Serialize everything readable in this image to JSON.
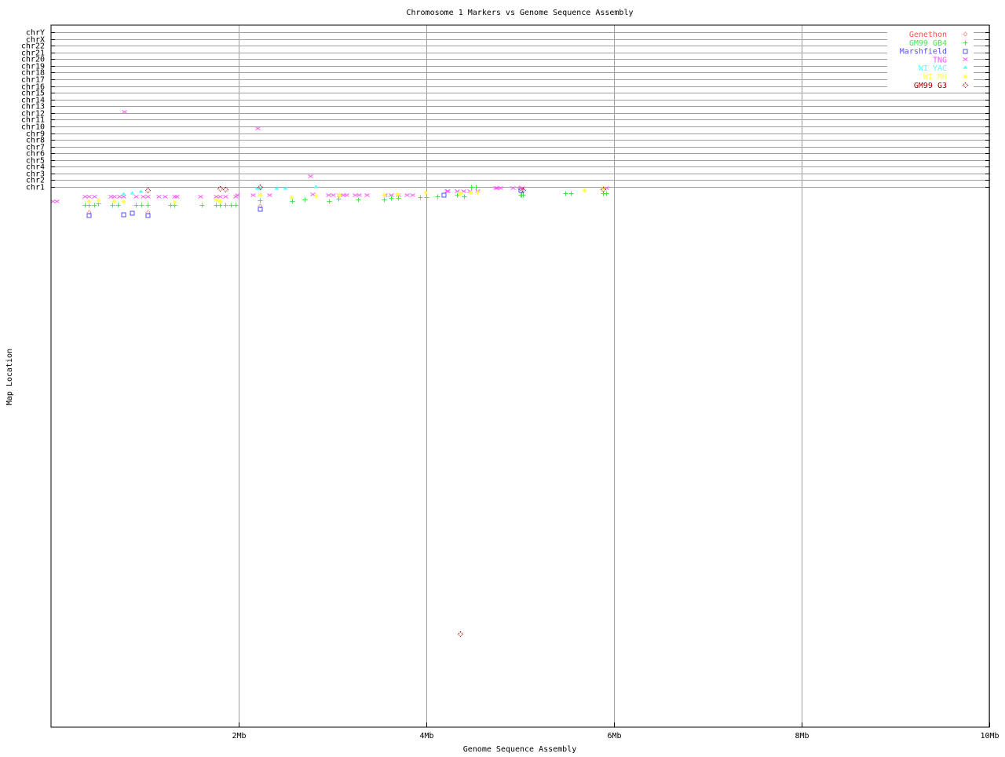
{
  "chart_data": {
    "type": "scatter",
    "title": "Chromosome 1 Markers vs Genome Sequence Assembly",
    "xlabel": "Genome Sequence Assembly",
    "ylabel": "Map Location",
    "xlim": [
      0,
      10
    ],
    "ylim": [
      -79.3,
      25.05
    ],
    "grid": true,
    "legend_position": "top-right",
    "x_ticks": [
      {
        "value": 2,
        "label": "2Mb"
      },
      {
        "value": 4,
        "label": "4Mb"
      },
      {
        "value": 6,
        "label": "6Mb"
      },
      {
        "value": 8,
        "label": "8Mb"
      },
      {
        "value": 10,
        "label": "10Mb"
      }
    ],
    "y_ticks": [
      {
        "value": 1,
        "label": "chr1"
      },
      {
        "value": 2,
        "label": "chr2"
      },
      {
        "value": 3,
        "label": "chr3"
      },
      {
        "value": 4,
        "label": "chr4"
      },
      {
        "value": 5,
        "label": "chr5"
      },
      {
        "value": 6,
        "label": "chr6"
      },
      {
        "value": 7,
        "label": "chr7"
      },
      {
        "value": 8,
        "label": "chr8"
      },
      {
        "value": 9,
        "label": "chr9"
      },
      {
        "value": 10,
        "label": "chr10"
      },
      {
        "value": 11,
        "label": "chr11"
      },
      {
        "value": 12,
        "label": "chr12"
      },
      {
        "value": 13,
        "label": "chr13"
      },
      {
        "value": 14,
        "label": "chr14"
      },
      {
        "value": 15,
        "label": "chr15"
      },
      {
        "value": 16,
        "label": "chr16"
      },
      {
        "value": 17,
        "label": "chr17"
      },
      {
        "value": 18,
        "label": "chr18"
      },
      {
        "value": 19,
        "label": "chr19"
      },
      {
        "value": 20,
        "label": "chr20"
      },
      {
        "value": 21,
        "label": "chr21"
      },
      {
        "value": 22,
        "label": "chr22"
      },
      {
        "value": 23,
        "label": "chrX"
      },
      {
        "value": 24,
        "label": "chrY"
      }
    ],
    "series": [
      {
        "name": "Genethon",
        "color": "#ff5050",
        "marker": "diamond-small",
        "points": [
          [
            0.4,
            -2.74
          ],
          [
            1.03,
            -2.74
          ],
          [
            2.23,
            -1.8
          ],
          [
            4.99,
            0.88
          ]
        ]
      },
      {
        "name": "GM99 GB4",
        "color": "#50e050",
        "marker": "plus",
        "points": [
          [
            0.36,
            -1.69
          ],
          [
            0.4,
            -1.69
          ],
          [
            0.46,
            -1.69
          ],
          [
            0.5,
            -1.45
          ],
          [
            0.65,
            -1.69
          ],
          [
            0.71,
            -1.69
          ],
          [
            0.9,
            -1.69
          ],
          [
            0.96,
            -1.69
          ],
          [
            1.03,
            -1.69
          ],
          [
            1.27,
            -1.69
          ],
          [
            1.31,
            -1.69
          ],
          [
            1.61,
            -1.69
          ],
          [
            1.76,
            -1.69
          ],
          [
            1.8,
            -1.69
          ],
          [
            1.86,
            -1.69
          ],
          [
            1.92,
            -1.69
          ],
          [
            1.97,
            -1.69
          ],
          [
            2.23,
            -0.98
          ],
          [
            2.57,
            -1.1
          ],
          [
            2.7,
            -0.87
          ],
          [
            2.96,
            -1.1
          ],
          [
            3.06,
            -0.75
          ],
          [
            3.27,
            -0.87
          ],
          [
            3.55,
            -0.87
          ],
          [
            3.62,
            -0.63
          ],
          [
            3.7,
            -0.63
          ],
          [
            3.93,
            -0.52
          ],
          [
            4.0,
            -0.52
          ],
          [
            4.12,
            -0.4
          ],
          [
            4.33,
            -0.17
          ],
          [
            4.4,
            -0.4
          ],
          [
            4.48,
            1.0
          ],
          [
            4.53,
            1.0
          ],
          [
            5.0,
            -0.17
          ],
          [
            5.01,
            -0.17
          ],
          [
            5.03,
            -0.17
          ],
          [
            5.48,
            0.07
          ],
          [
            5.54,
            0.07
          ],
          [
            5.88,
            0.07
          ],
          [
            5.92,
            0.07
          ]
        ]
      },
      {
        "name": "Marshfield",
        "color": "#5050ff",
        "marker": "square",
        "points": [
          [
            0.4,
            -3.2
          ],
          [
            0.77,
            -3.09
          ],
          [
            0.86,
            -2.85
          ],
          [
            1.03,
            -3.2
          ],
          [
            2.23,
            -2.27
          ],
          [
            4.18,
            -0.17
          ],
          [
            5.0,
            0.53
          ]
        ]
      },
      {
        "name": "TNG",
        "color": "#ff50ff",
        "marker": "x",
        "points": [
          [
            0.02,
            -1.1
          ],
          [
            0.06,
            -1.1
          ],
          [
            0.36,
            -0.4
          ],
          [
            0.4,
            -0.4
          ],
          [
            0.46,
            -0.4
          ],
          [
            0.64,
            -0.4
          ],
          [
            0.67,
            -0.4
          ],
          [
            0.73,
            -0.4
          ],
          [
            0.77,
            -0.4
          ],
          [
            0.9,
            -0.4
          ],
          [
            0.98,
            -0.4
          ],
          [
            1.03,
            -0.4
          ],
          [
            1.15,
            -0.4
          ],
          [
            1.21,
            -0.4
          ],
          [
            1.31,
            -0.4
          ],
          [
            1.34,
            -0.4
          ],
          [
            1.59,
            -0.4
          ],
          [
            1.76,
            -0.4
          ],
          [
            1.8,
            -0.4
          ],
          [
            1.86,
            -0.4
          ],
          [
            1.97,
            -0.4
          ],
          [
            1.98,
            -0.17
          ],
          [
            2.15,
            -0.17
          ],
          [
            2.33,
            -0.17
          ],
          [
            2.79,
            -0.05
          ],
          [
            2.95,
            -0.17
          ],
          [
            3.0,
            -0.17
          ],
          [
            3.07,
            -0.17
          ],
          [
            3.11,
            -0.17
          ],
          [
            3.15,
            -0.17
          ],
          [
            3.24,
            -0.17
          ],
          [
            3.28,
            -0.17
          ],
          [
            3.36,
            -0.17
          ],
          [
            3.56,
            -0.17
          ],
          [
            3.62,
            -0.17
          ],
          [
            3.7,
            -0.17
          ],
          [
            3.79,
            -0.17
          ],
          [
            3.85,
            -0.17
          ],
          [
            4.22,
            0.42
          ],
          [
            4.23,
            0.42
          ],
          [
            4.33,
            0.42
          ],
          [
            4.39,
            0.42
          ],
          [
            4.46,
            0.42
          ],
          [
            4.54,
            0.42
          ],
          [
            4.74,
            0.88
          ],
          [
            4.75,
            0.88
          ],
          [
            4.79,
            0.88
          ],
          [
            4.92,
            0.88
          ],
          [
            5.02,
            0.88
          ],
          [
            5.92,
            0.88
          ],
          [
            0.78,
            12.21
          ],
          [
            2.2,
            9.76
          ],
          [
            2.76,
            2.63
          ]
        ]
      },
      {
        "name": "WI YAC",
        "color": "#50ffff",
        "marker": "triangle",
        "points": [
          [
            0.77,
            -0.05
          ],
          [
            0.86,
            0.07
          ],
          [
            0.95,
            0.3
          ],
          [
            2.19,
            0.77
          ],
          [
            2.23,
            0.77
          ],
          [
            2.4,
            0.77
          ],
          [
            2.49,
            0.77
          ],
          [
            2.82,
            1.0
          ]
        ]
      },
      {
        "name": "WI RH",
        "color": "#ffff50",
        "marker": "star",
        "points": [
          [
            0.4,
            -1.1
          ],
          [
            0.5,
            -0.98
          ],
          [
            0.67,
            -1.1
          ],
          [
            0.77,
            -1.1
          ],
          [
            1.31,
            -1.22
          ],
          [
            1.76,
            -0.87
          ],
          [
            1.8,
            -1.1
          ],
          [
            2.23,
            -0.17
          ],
          [
            2.56,
            -0.52
          ],
          [
            2.82,
            -0.28
          ],
          [
            3.07,
            -0.17
          ],
          [
            3.55,
            -0.17
          ],
          [
            3.69,
            -0.05
          ],
          [
            3.99,
            0.18
          ],
          [
            4.36,
            0.07
          ],
          [
            4.47,
            0.18
          ],
          [
            4.54,
            0.18
          ],
          [
            5.68,
            0.53
          ],
          [
            5.88,
            0.88
          ]
        ]
      },
      {
        "name": "GM99 G3",
        "color": "#a00000",
        "marker": "diamond",
        "points": [
          [
            1.03,
            0.53
          ],
          [
            1.8,
            0.77
          ],
          [
            1.86,
            0.65
          ],
          [
            2.23,
            1.0
          ],
          [
            5.03,
            0.53
          ],
          [
            5.88,
            0.65
          ],
          [
            4.36,
            -65.43
          ]
        ]
      }
    ]
  }
}
